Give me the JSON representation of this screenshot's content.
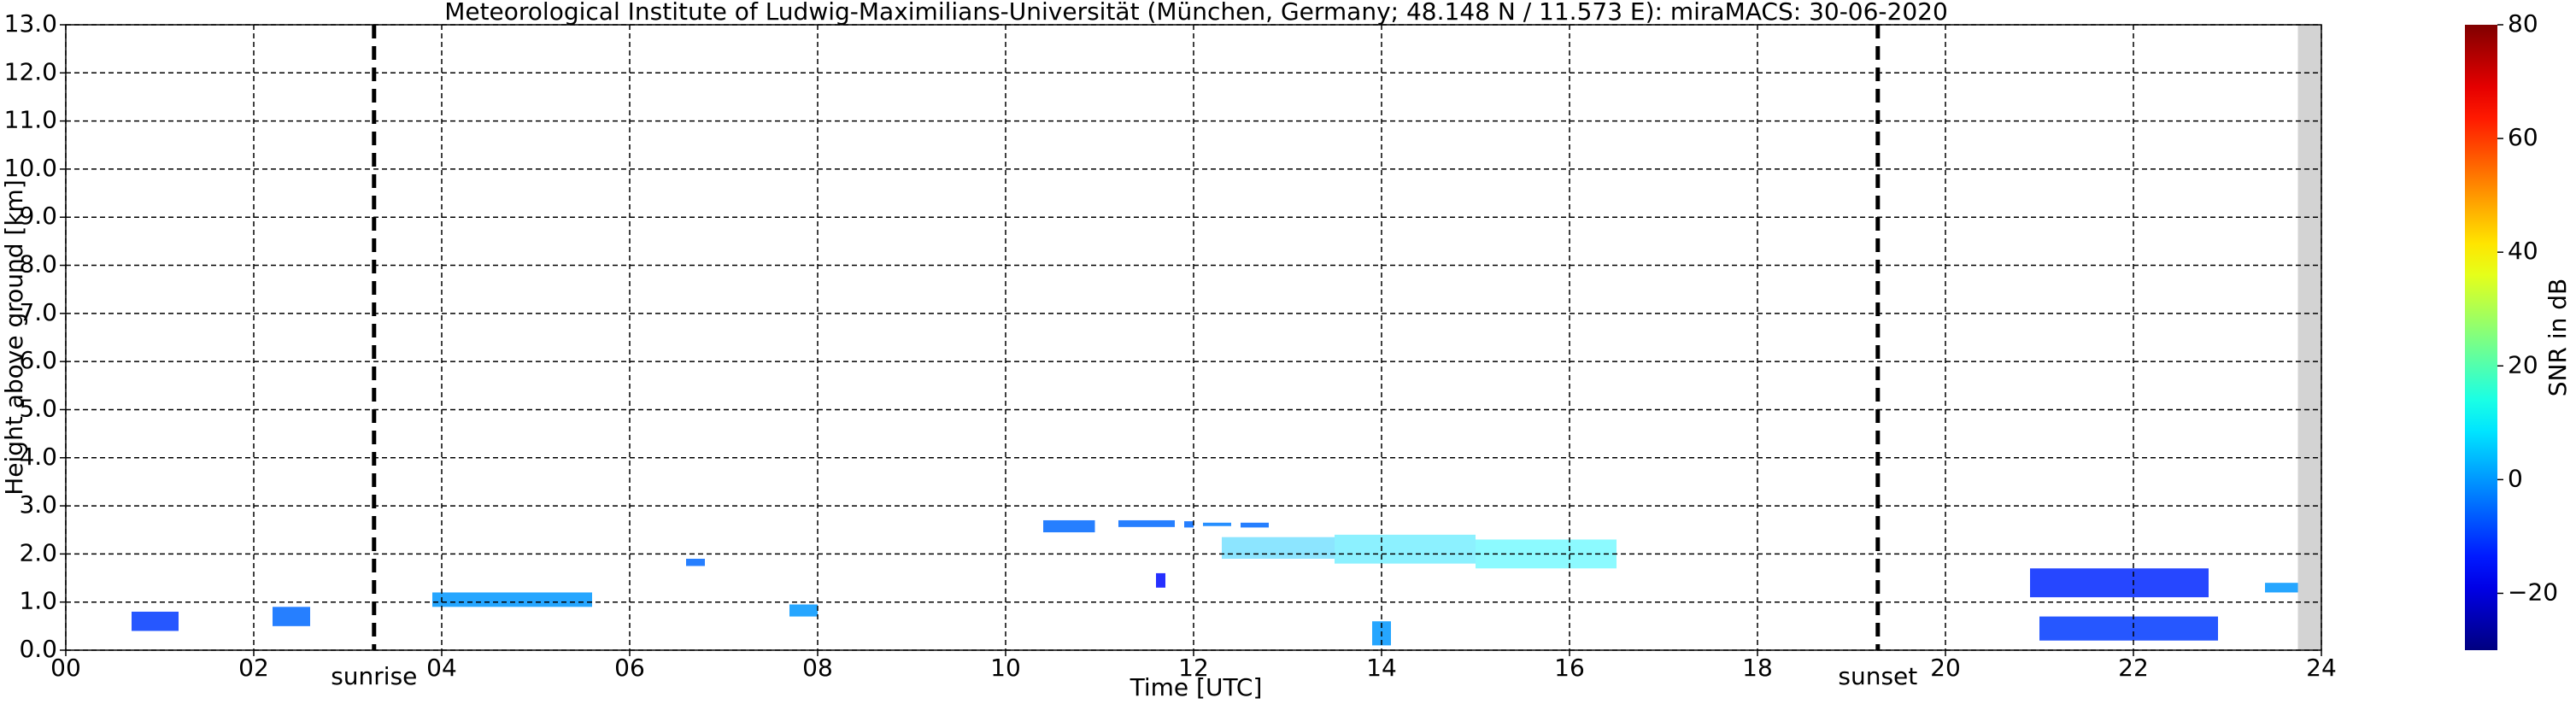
{
  "chart_data": {
    "type": "heatmap",
    "title": "Meteorological Institute of Ludwig-Maximilians-Universität (München, Germany; 48.148 N / 11.573 E):    miraMACS: 30-06-2020",
    "xlabel": "Time [UTC]",
    "ylabel": "Height above ground [km]",
    "xlim": [
      0,
      24
    ],
    "ylim": [
      0,
      13
    ],
    "xticks": [
      {
        "value": 0,
        "label": "00"
      },
      {
        "value": 2,
        "label": "02"
      },
      {
        "value": 4,
        "label": "04"
      },
      {
        "value": 6,
        "label": "06"
      },
      {
        "value": 8,
        "label": "08"
      },
      {
        "value": 10,
        "label": "10"
      },
      {
        "value": 12,
        "label": "12"
      },
      {
        "value": 14,
        "label": "14"
      },
      {
        "value": 16,
        "label": "16"
      },
      {
        "value": 18,
        "label": "18"
      },
      {
        "value": 20,
        "label": "20"
      },
      {
        "value": 22,
        "label": "22"
      },
      {
        "value": 24,
        "label": "24"
      }
    ],
    "yticks": [
      {
        "value": 0,
        "label": "0.0"
      },
      {
        "value": 1,
        "label": "1.0"
      },
      {
        "value": 2,
        "label": "2.0"
      },
      {
        "value": 3,
        "label": "3.0"
      },
      {
        "value": 4,
        "label": "4.0"
      },
      {
        "value": 5,
        "label": "5.0"
      },
      {
        "value": 6,
        "label": "6.0"
      },
      {
        "value": 7,
        "label": "7.0"
      },
      {
        "value": 8,
        "label": "8.0"
      },
      {
        "value": 9,
        "label": "9.0"
      },
      {
        "value": 10,
        "label": "10.0"
      },
      {
        "value": 11,
        "label": "11.0"
      },
      {
        "value": 12,
        "label": "12.0"
      },
      {
        "value": 13,
        "label": "13.0"
      }
    ],
    "grid": true,
    "colormap": "jet",
    "colorbar_label": "SNR in dB",
    "clim": [
      -30,
      80
    ],
    "cticks": [
      {
        "value": -20,
        "label": "−20"
      },
      0,
      20,
      40,
      60,
      80
    ],
    "missing": [
      23.75,
      24
    ],
    "missing_color": "#d3d3d3",
    "annotations": [
      {
        "label": "sunrise",
        "x": 3.28
      },
      {
        "label": "sunset",
        "x": 19.28
      }
    ],
    "echoes": [
      {
        "t0": 10.4,
        "t1": 10.95,
        "h0": 2.45,
        "h1": 2.7,
        "snr": -5
      },
      {
        "t0": 11.2,
        "t1": 11.8,
        "h0": 2.56,
        "h1": 2.7,
        "snr": -5
      },
      {
        "t0": 11.9,
        "t1": 12.0,
        "h0": 2.55,
        "h1": 2.68,
        "snr": -5
      },
      {
        "t0": 12.1,
        "t1": 12.4,
        "h0": 2.58,
        "h1": 2.65,
        "snr": -3
      },
      {
        "t0": 12.5,
        "t1": 12.8,
        "h0": 2.55,
        "h1": 2.65,
        "snr": -5
      },
      {
        "t0": 12.3,
        "t1": 13.5,
        "h0": 1.9,
        "h1": 2.35,
        "snr": 5
      },
      {
        "t0": 13.5,
        "t1": 15.0,
        "h0": 1.8,
        "h1": 2.4,
        "snr": 8
      },
      {
        "t0": 15.0,
        "t1": 16.5,
        "h0": 1.7,
        "h1": 2.3,
        "snr": 10
      },
      {
        "t0": 3.9,
        "t1": 5.6,
        "h0": 0.9,
        "h1": 1.2,
        "snr": 0
      },
      {
        "t0": 0.7,
        "t1": 1.2,
        "h0": 0.4,
        "h1": 0.8,
        "snr": -10
      },
      {
        "t0": 2.2,
        "t1": 2.6,
        "h0": 0.5,
        "h1": 0.9,
        "snr": -5
      },
      {
        "t0": 20.9,
        "t1": 22.8,
        "h0": 1.1,
        "h1": 1.7,
        "snr": -12
      },
      {
        "t0": 21.0,
        "t1": 22.9,
        "h0": 0.2,
        "h1": 0.7,
        "snr": -10
      },
      {
        "t0": 23.4,
        "t1": 23.75,
        "h0": 1.2,
        "h1": 1.4,
        "snr": 0
      },
      {
        "t0": 13.9,
        "t1": 14.1,
        "h0": 0.1,
        "h1": 0.6,
        "snr": 0
      },
      {
        "t0": 11.6,
        "t1": 11.7,
        "h0": 1.3,
        "h1": 1.6,
        "snr": -15
      },
      {
        "t0": 6.6,
        "t1": 6.8,
        "h0": 1.75,
        "h1": 1.9,
        "snr": -5
      },
      {
        "t0": 7.7,
        "t1": 8.0,
        "h0": 0.7,
        "h1": 0.95,
        "snr": 0
      }
    ]
  }
}
